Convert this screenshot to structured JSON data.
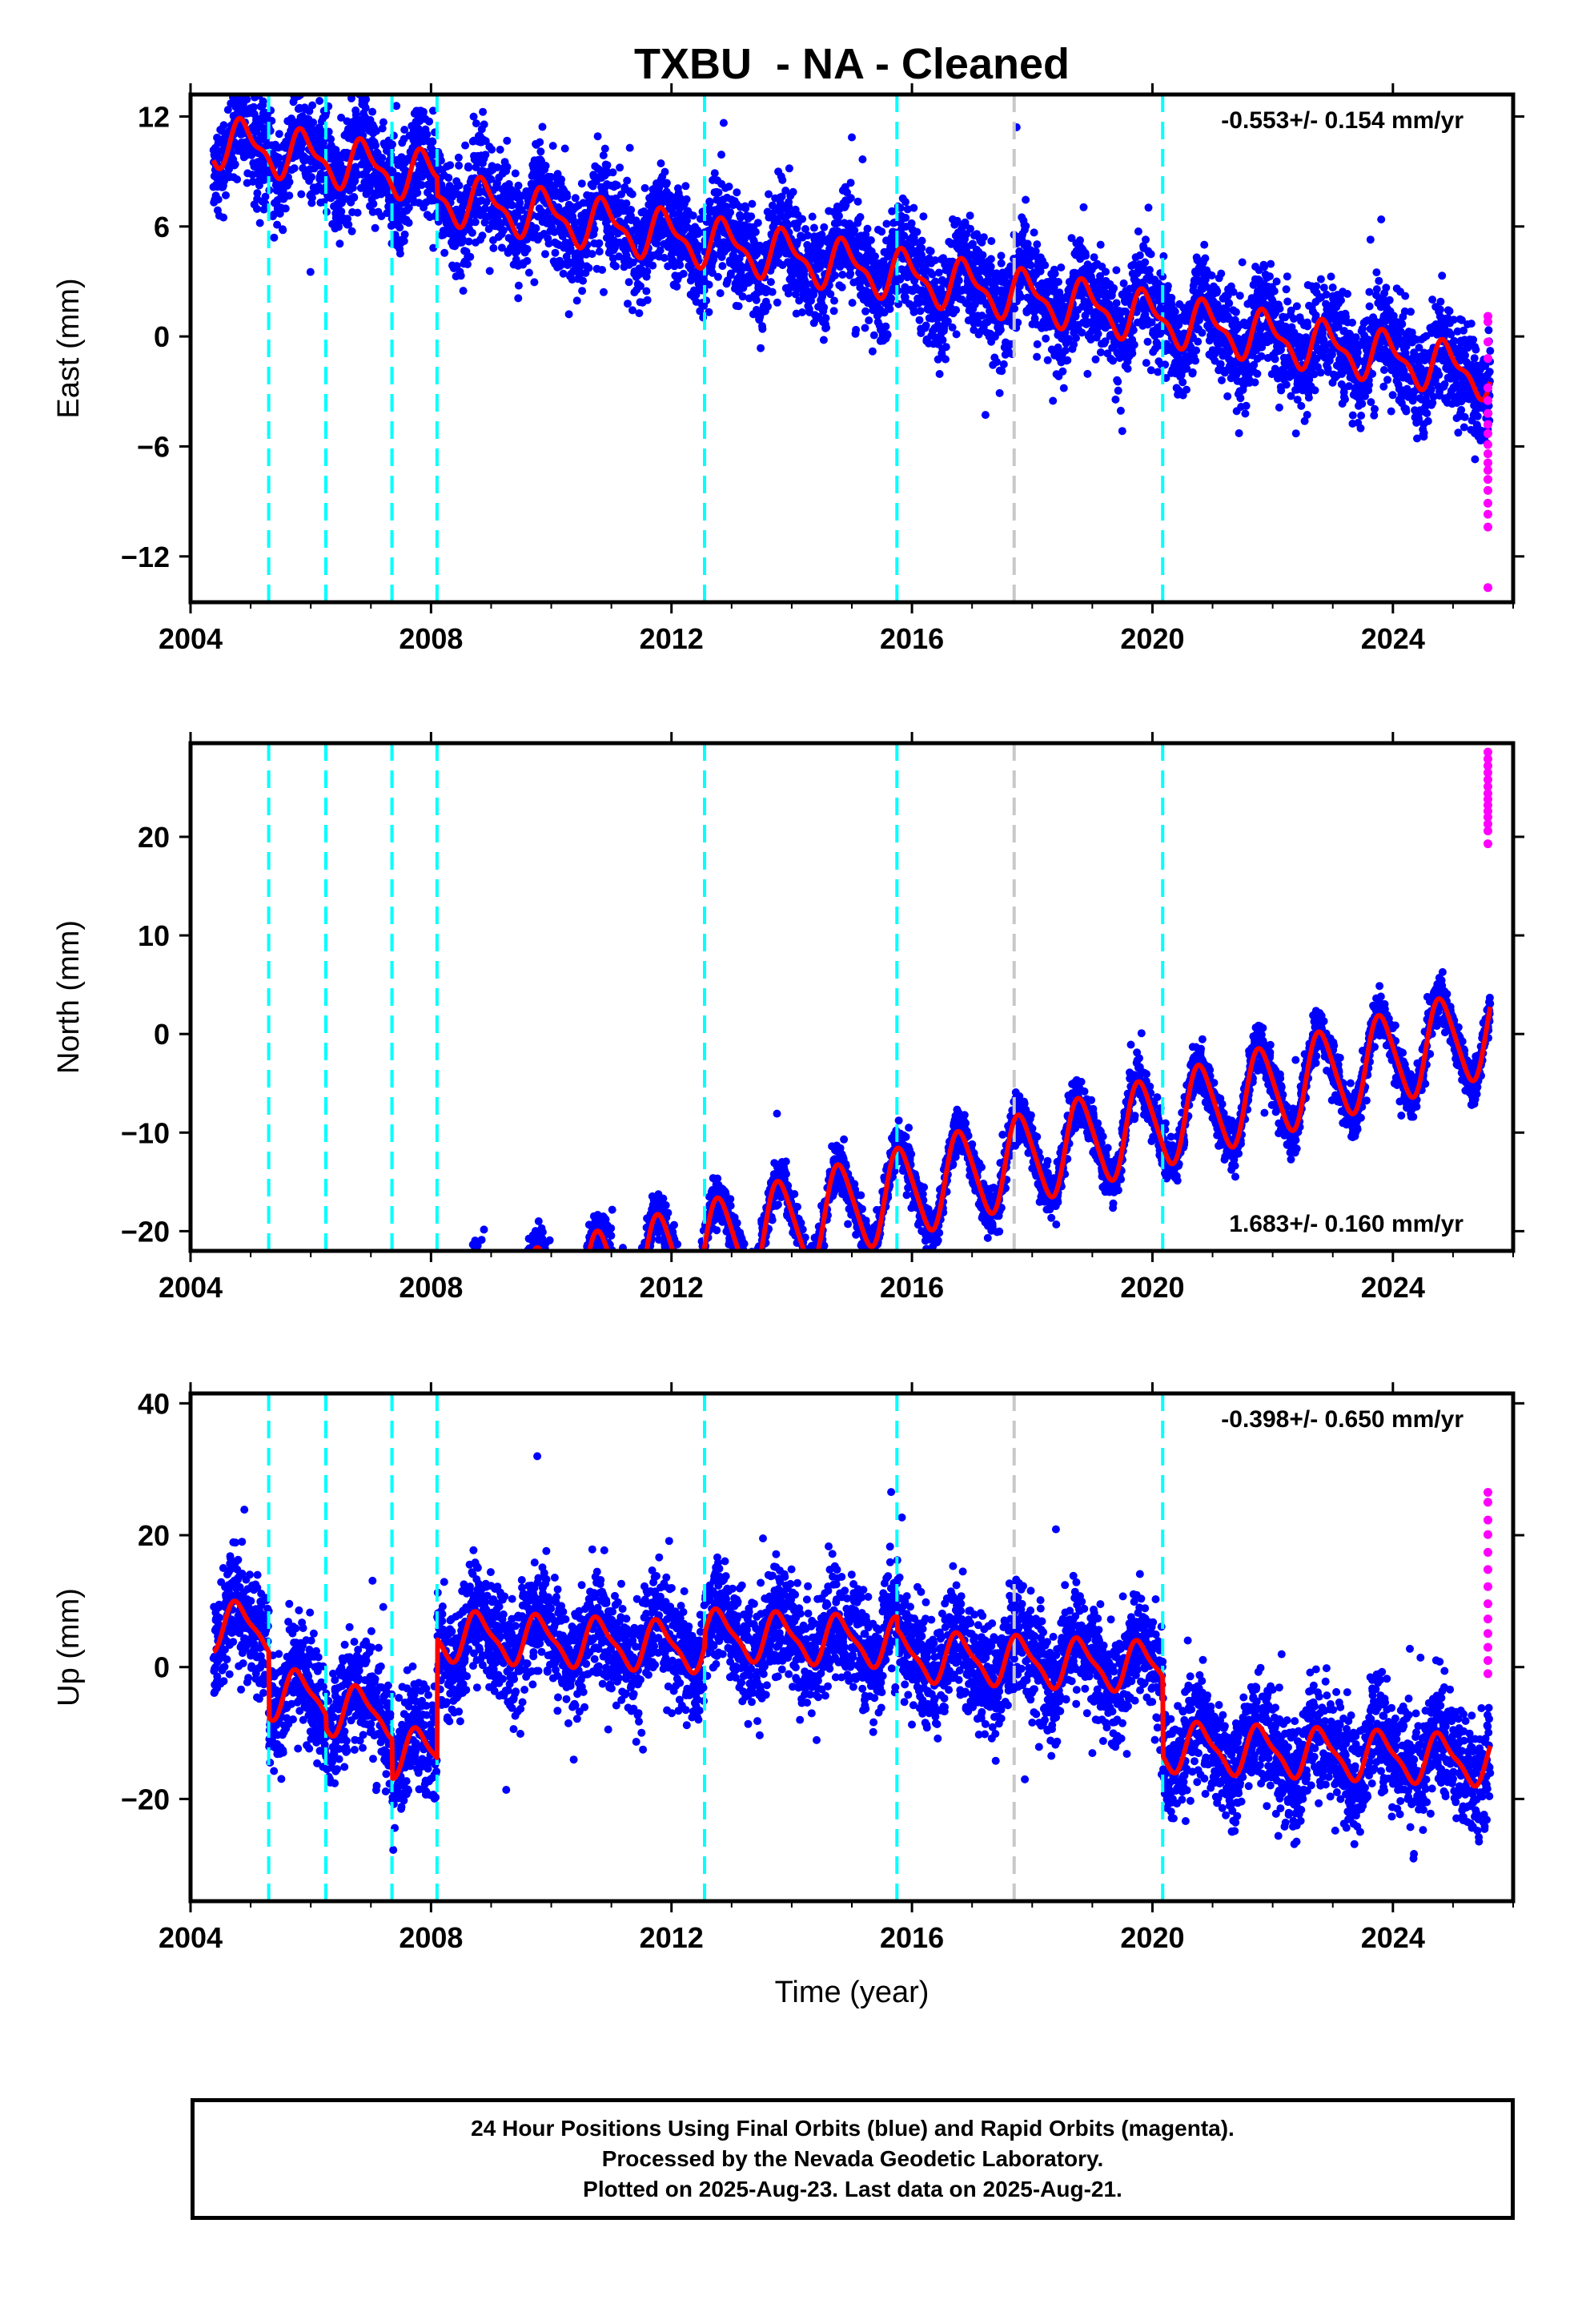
{
  "title": "TXBU  - NA - Cleaned",
  "caption": [
    "24 Hour Positions Using Final Orbits (blue) and Rapid Orbits (magenta).",
    "Processed by the Nevada Geodetic Laboratory.",
    "Plotted on 2025-Aug-23. Last data on 2025-Aug-21."
  ],
  "colors": {
    "final_orbits": "#0000ff",
    "rapid_orbits": "#ff00ff",
    "model_fit": "#ff0000",
    "event_dashed": "#00ffff",
    "event_gray": "#c8c8c8"
  },
  "chart_data": [
    {
      "type": "scatter",
      "ylabel": "East (mm)",
      "xlabel": "",
      "xlim": [
        2004.0,
        2026.0
      ],
      "ylim": [
        -14.5,
        13.2
      ],
      "xticks": [
        2004,
        2008,
        2012,
        2016,
        2020,
        2024
      ],
      "yticks": [
        -12,
        -6,
        0,
        6,
        12
      ],
      "tick_labels": [
        "2004",
        "2008",
        "2012",
        "2016",
        "2020",
        "2024"
      ],
      "ytick_labels": [
        "−12",
        "−6",
        "0",
        "6",
        "12"
      ],
      "rate": "-0.553+/- 0.154 mm/yr",
      "rate_position": "top-right",
      "model": {
        "start": 2004.38,
        "end": 2025.62,
        "offset": 4.8,
        "trend": -0.553,
        "annual_amplitude": 1.2,
        "annual_phase": 0.65,
        "semiannual_amplitude": 0.5,
        "steps": [
          {
            "epoch": 2005.3,
            "value": 0
          },
          {
            "epoch": 2006.25,
            "value": 0
          },
          {
            "epoch": 2007.35,
            "value": 0
          },
          {
            "epoch": 2008.1,
            "value": -1.0
          },
          {
            "epoch": 2012.55,
            "value": 0
          },
          {
            "epoch": 2015.75,
            "value": 0
          },
          {
            "epoch": 2020.17,
            "value": 0
          }
        ],
        "scatter_sd": 1.4
      },
      "rapid_points": [
        1.1,
        0.8,
        -0.3,
        -1.2,
        -2.8,
        -3.5,
        -4.2,
        -4.8,
        -5.3,
        -5.9,
        -6.4,
        -6.9,
        -7.3,
        -7.8,
        -8.4,
        -9.1,
        -9.7,
        -10.4,
        -13.7
      ],
      "events": {
        "cyan": [
          2005.3,
          2006.25,
          2007.35,
          2008.1,
          2012.55,
          2015.75,
          2020.17
        ],
        "gray": [
          2017.7
        ]
      }
    },
    {
      "type": "scatter",
      "ylabel": "North (mm)",
      "xlabel": "",
      "xlim": [
        2004.0,
        2026.0
      ],
      "ylim": [
        -22.0,
        29.5
      ],
      "xticks": [
        2004,
        2008,
        2012,
        2016,
        2020,
        2024
      ],
      "yticks": [
        -20,
        -10,
        0,
        10,
        20
      ],
      "tick_labels": [
        "2004",
        "2008",
        "2012",
        "2016",
        "2020",
        "2024"
      ],
      "ytick_labels": [
        "−20",
        "−10",
        "0",
        "10",
        "20"
      ],
      "rate": "1.683+/- 0.160 mm/yr",
      "rate_position": "bottom-right",
      "model": {
        "start": 2004.38,
        "end": 2025.62,
        "offset": -17.5,
        "trend": 1.683,
        "annual_amplitude": 4.5,
        "annual_phase": 0.55,
        "semiannual_amplitude": 0.6,
        "steps": [],
        "scatter_sd": 1.2
      },
      "rapid_points": [
        28.6,
        27.9,
        27.2,
        26.5,
        25.8,
        25.1,
        24.4,
        23.8,
        23.2,
        22.6,
        22.0,
        21.3,
        20.6,
        19.3
      ],
      "events": {
        "cyan": [
          2005.3,
          2006.25,
          2007.35,
          2008.1,
          2012.55,
          2015.75,
          2020.17
        ],
        "gray": [
          2017.7
        ]
      }
    },
    {
      "type": "scatter",
      "ylabel": "Up (mm)",
      "xlabel": "Time (year)",
      "xlim": [
        2004.0,
        2026.0
      ],
      "ylim": [
        -35.5,
        41.5
      ],
      "xticks": [
        2004,
        2008,
        2012,
        2016,
        2020,
        2024
      ],
      "yticks": [
        -20,
        0,
        20,
        40
      ],
      "tick_labels": [
        "2004",
        "2008",
        "2012",
        "2016",
        "2020",
        "2024"
      ],
      "ytick_labels": [
        "−20",
        "0",
        "20",
        "40"
      ],
      "rate": "-0.398+/- 0.650 mm/yr",
      "rate_position": "top-right",
      "model": {
        "start": 2004.38,
        "end": 2025.62,
        "offset": 2.0,
        "trend": -0.398,
        "annual_amplitude": 3.5,
        "annual_phase": 0.55,
        "semiannual_amplitude": 1.0,
        "steps": [
          {
            "epoch": 2005.3,
            "value": -10
          },
          {
            "epoch": 2006.25,
            "value": -2
          },
          {
            "epoch": 2007.35,
            "value": -6
          },
          {
            "epoch": 2008.1,
            "value": 18
          },
          {
            "epoch": 2012.55,
            "value": 2
          },
          {
            "epoch": 2015.75,
            "value": -2
          },
          {
            "epoch": 2020.17,
            "value": -12
          }
        ],
        "scatter_sd": 4.2
      },
      "rapid_points": [
        26.5,
        25.0,
        22.3,
        20.1,
        17.4,
        14.8,
        12.2,
        9.6,
        7.3,
        5.1,
        3.0,
        1.0,
        -1.0
      ],
      "events": {
        "cyan": [
          2005.3,
          2006.25,
          2007.35,
          2008.1,
          2012.55,
          2015.75,
          2020.17
        ],
        "gray": [
          2017.7
        ]
      }
    }
  ]
}
